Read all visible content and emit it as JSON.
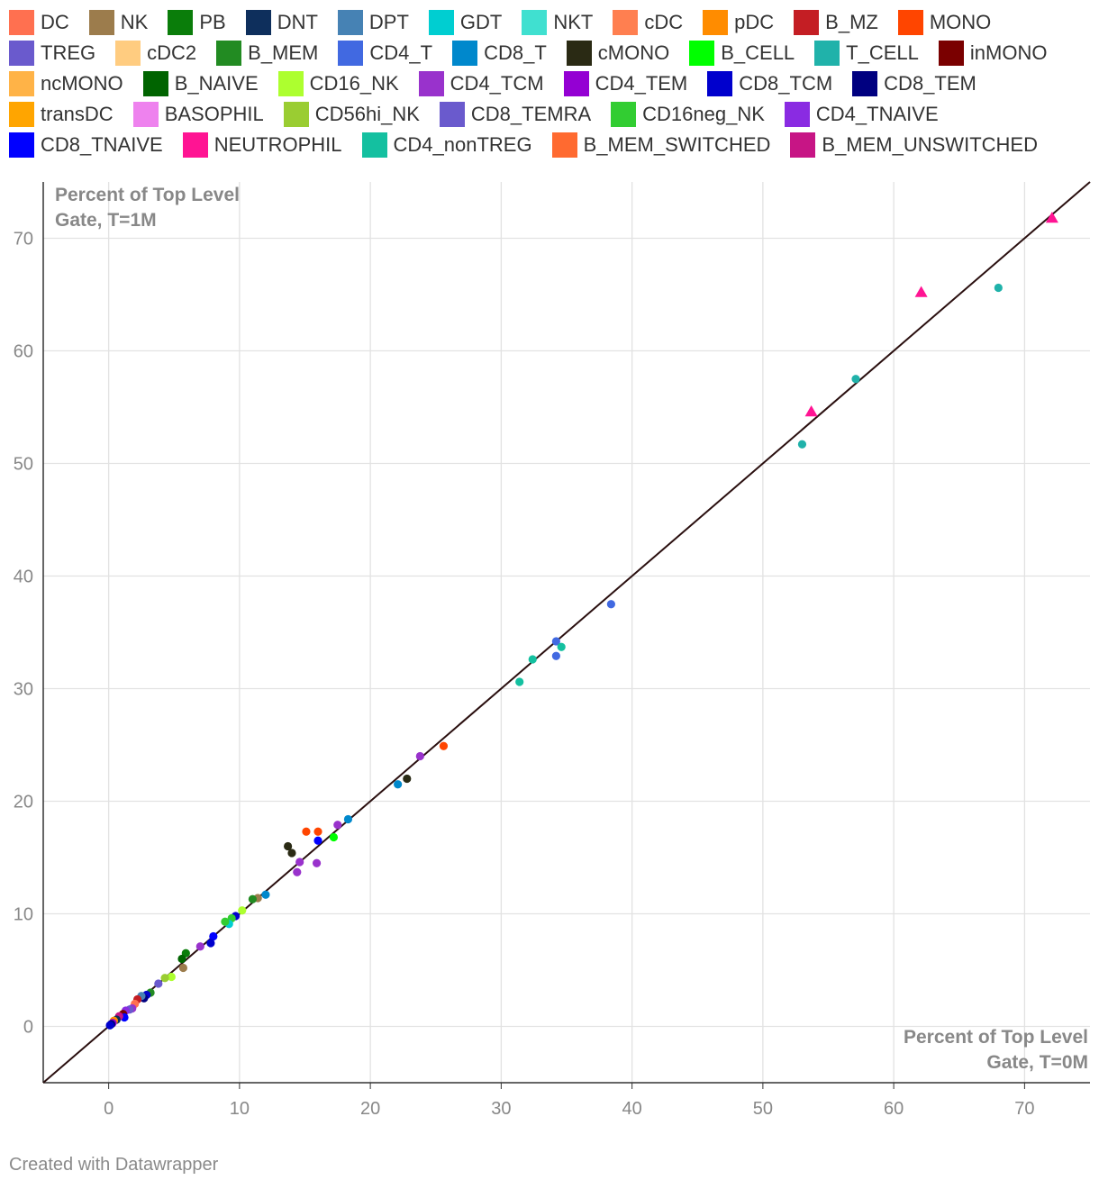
{
  "legend": [
    {
      "label": "DC",
      "color": "#ff7050"
    },
    {
      "label": "NK",
      "color": "#9c7c4c"
    },
    {
      "label": "PB",
      "color": "#0a7d0a"
    },
    {
      "label": "DNT",
      "color": "#0e2f5c"
    },
    {
      "label": "DPT",
      "color": "#4682b4"
    },
    {
      "label": "GDT",
      "color": "#00ced1"
    },
    {
      "label": "NKT",
      "color": "#40e0d0"
    },
    {
      "label": "cDC",
      "color": "#ff7f50"
    },
    {
      "label": "pDC",
      "color": "#ff8c00"
    },
    {
      "label": "B_MZ",
      "color": "#c41e24"
    },
    {
      "label": "MONO",
      "color": "#ff4500"
    },
    {
      "label": "TREG",
      "color": "#6a5acd"
    },
    {
      "label": "cDC2",
      "color": "#ffcc80"
    },
    {
      "label": "B_MEM",
      "color": "#228b22"
    },
    {
      "label": "CD4_T",
      "color": "#4169e1"
    },
    {
      "label": "CD8_T",
      "color": "#0088cc"
    },
    {
      "label": "cMONO",
      "color": "#2a2a14"
    },
    {
      "label": "B_CELL",
      "color": "#00ff00"
    },
    {
      "label": "T_CELL",
      "color": "#20b2aa"
    },
    {
      "label": "inMONO",
      "color": "#7a0000"
    },
    {
      "label": "ncMONO",
      "color": "#ffb347"
    },
    {
      "label": "B_NAIVE",
      "color": "#006400"
    },
    {
      "label": "CD16_NK",
      "color": "#adff2f"
    },
    {
      "label": "CD4_TCM",
      "color": "#9932cc"
    },
    {
      "label": "CD4_TEM",
      "color": "#9400d3"
    },
    {
      "label": "CD8_TCM",
      "color": "#0000cd"
    },
    {
      "label": "CD8_TEM",
      "color": "#000080"
    },
    {
      "label": "transDC",
      "color": "#ffa500"
    },
    {
      "label": "BASOPHIL",
      "color": "#ee82ee"
    },
    {
      "label": "CD56hi_NK",
      "color": "#9acd32"
    },
    {
      "label": "CD8_TEMRA",
      "color": "#6a5acd"
    },
    {
      "label": "CD16neg_NK",
      "color": "#32cd32"
    },
    {
      "label": "CD4_TNAIVE",
      "color": "#8a2be2"
    },
    {
      "label": "CD8_TNAIVE",
      "color": "#0000ff"
    },
    {
      "label": "NEUTROPHIL",
      "color": "#ff1493"
    },
    {
      "label": "CD4_nonTREG",
      "color": "#14c0a0"
    },
    {
      "label": "B_MEM_SWITCHED",
      "color": "#ff6a30"
    },
    {
      "label": "B_MEM_UNSWITCHED",
      "color": "#c71585"
    }
  ],
  "chart_data": {
    "type": "scatter",
    "title": "",
    "xlabel": "Percent of Top Level Gate, T=0M",
    "ylabel": "Percent of Top Level Gate, T=1M",
    "xlabel_lines": [
      "Percent of Top Level",
      "Gate, T=0M"
    ],
    "ylabel_lines": [
      "Percent of Top Level",
      "Gate, T=1M"
    ],
    "xlim": [
      -5,
      75
    ],
    "ylim": [
      -5,
      75
    ],
    "x_ticks": [
      0,
      10,
      20,
      30,
      40,
      50,
      60,
      70
    ],
    "y_ticks": [
      0,
      10,
      20,
      30,
      40,
      50,
      60,
      70
    ],
    "reference_line": {
      "from": [
        -5,
        -5
      ],
      "to": [
        75,
        75
      ],
      "color": "#2a0f0f"
    },
    "points": [
      {
        "x": 72.1,
        "y": 71.8,
        "color": "#ff1493",
        "shape": "triangle"
      },
      {
        "x": 62.1,
        "y": 65.2,
        "color": "#ff1493",
        "shape": "triangle"
      },
      {
        "x": 53.7,
        "y": 54.6,
        "color": "#ff1493",
        "shape": "triangle"
      },
      {
        "x": 68.0,
        "y": 65.6,
        "color": "#20b2aa",
        "shape": "circle"
      },
      {
        "x": 57.1,
        "y": 57.5,
        "color": "#20b2aa",
        "shape": "circle"
      },
      {
        "x": 53.0,
        "y": 51.7,
        "color": "#20b2aa",
        "shape": "circle"
      },
      {
        "x": 38.4,
        "y": 37.5,
        "color": "#4169e1",
        "shape": "circle"
      },
      {
        "x": 34.2,
        "y": 34.2,
        "color": "#4169e1",
        "shape": "circle"
      },
      {
        "x": 34.2,
        "y": 32.9,
        "color": "#4169e1",
        "shape": "circle"
      },
      {
        "x": 34.6,
        "y": 33.7,
        "color": "#14c0a0",
        "shape": "circle"
      },
      {
        "x": 32.4,
        "y": 32.6,
        "color": "#14c0a0",
        "shape": "circle"
      },
      {
        "x": 31.4,
        "y": 30.6,
        "color": "#14c0a0",
        "shape": "circle"
      },
      {
        "x": 25.6,
        "y": 24.9,
        "color": "#ff4500",
        "shape": "circle"
      },
      {
        "x": 23.8,
        "y": 24.0,
        "color": "#9932cc",
        "shape": "circle"
      },
      {
        "x": 22.8,
        "y": 22.0,
        "color": "#2a2a14",
        "shape": "circle"
      },
      {
        "x": 22.1,
        "y": 21.5,
        "color": "#0088cc",
        "shape": "circle"
      },
      {
        "x": 18.3,
        "y": 18.4,
        "color": "#0088cc",
        "shape": "circle"
      },
      {
        "x": 17.5,
        "y": 17.9,
        "color": "#9932cc",
        "shape": "circle"
      },
      {
        "x": 17.2,
        "y": 16.8,
        "color": "#00ff00",
        "shape": "circle"
      },
      {
        "x": 15.1,
        "y": 17.3,
        "color": "#ff4500",
        "shape": "circle"
      },
      {
        "x": 16.0,
        "y": 17.3,
        "color": "#ff4500",
        "shape": "circle"
      },
      {
        "x": 16.0,
        "y": 16.5,
        "color": "#0000ff",
        "shape": "circle"
      },
      {
        "x": 13.7,
        "y": 16.0,
        "color": "#2a2a14",
        "shape": "circle"
      },
      {
        "x": 14.0,
        "y": 15.4,
        "color": "#2a2a14",
        "shape": "circle"
      },
      {
        "x": 14.6,
        "y": 14.6,
        "color": "#9932cc",
        "shape": "circle"
      },
      {
        "x": 15.9,
        "y": 14.5,
        "color": "#9932cc",
        "shape": "circle"
      },
      {
        "x": 14.4,
        "y": 13.7,
        "color": "#9932cc",
        "shape": "circle"
      },
      {
        "x": 12.0,
        "y": 11.7,
        "color": "#0088cc",
        "shape": "circle"
      },
      {
        "x": 11.4,
        "y": 11.4,
        "color": "#9c7c4c",
        "shape": "circle"
      },
      {
        "x": 11.0,
        "y": 11.3,
        "color": "#228b22",
        "shape": "circle"
      },
      {
        "x": 10.2,
        "y": 10.3,
        "color": "#adff2f",
        "shape": "circle"
      },
      {
        "x": 9.7,
        "y": 9.8,
        "color": "#0000cd",
        "shape": "circle"
      },
      {
        "x": 9.4,
        "y": 9.6,
        "color": "#32cd32",
        "shape": "circle"
      },
      {
        "x": 9.2,
        "y": 9.1,
        "color": "#00ced1",
        "shape": "circle"
      },
      {
        "x": 8.9,
        "y": 9.3,
        "color": "#32cd32",
        "shape": "circle"
      },
      {
        "x": 8.0,
        "y": 8.0,
        "color": "#0000ff",
        "shape": "circle"
      },
      {
        "x": 7.8,
        "y": 7.4,
        "color": "#0000cd",
        "shape": "circle"
      },
      {
        "x": 7.0,
        "y": 7.1,
        "color": "#9932cc",
        "shape": "circle"
      },
      {
        "x": 5.9,
        "y": 6.5,
        "color": "#0a7d0a",
        "shape": "circle"
      },
      {
        "x": 5.6,
        "y": 6.0,
        "color": "#006400",
        "shape": "circle"
      },
      {
        "x": 5.7,
        "y": 5.2,
        "color": "#9c7c4c",
        "shape": "circle"
      },
      {
        "x": 4.8,
        "y": 4.4,
        "color": "#adff2f",
        "shape": "circle"
      },
      {
        "x": 4.3,
        "y": 4.3,
        "color": "#9acd32",
        "shape": "circle"
      },
      {
        "x": 3.8,
        "y": 3.8,
        "color": "#6a5acd",
        "shape": "circle"
      },
      {
        "x": 3.2,
        "y": 3.0,
        "color": "#228b22",
        "shape": "circle"
      },
      {
        "x": 2.9,
        "y": 2.8,
        "color": "#0000cd",
        "shape": "circle"
      },
      {
        "x": 2.7,
        "y": 2.5,
        "color": "#000080",
        "shape": "circle"
      },
      {
        "x": 2.5,
        "y": 2.7,
        "color": "#4682b4",
        "shape": "circle"
      },
      {
        "x": 2.2,
        "y": 2.4,
        "color": "#c41e24",
        "shape": "circle"
      },
      {
        "x": 2.0,
        "y": 2.0,
        "color": "#ff7050",
        "shape": "circle"
      },
      {
        "x": 1.8,
        "y": 1.6,
        "color": "#9932cc",
        "shape": "circle"
      },
      {
        "x": 1.6,
        "y": 1.5,
        "color": "#6a5acd",
        "shape": "circle"
      },
      {
        "x": 1.3,
        "y": 1.4,
        "color": "#8a2be2",
        "shape": "circle"
      },
      {
        "x": 1.1,
        "y": 1.1,
        "color": "#7a0000",
        "shape": "circle"
      },
      {
        "x": 1.2,
        "y": 0.8,
        "color": "#0000ff",
        "shape": "circle"
      },
      {
        "x": 0.8,
        "y": 0.9,
        "color": "#c71585",
        "shape": "circle"
      },
      {
        "x": 0.6,
        "y": 0.6,
        "color": "#0e2f5c",
        "shape": "circle"
      },
      {
        "x": 0.4,
        "y": 0.5,
        "color": "#ff8c00",
        "shape": "circle"
      },
      {
        "x": 0.3,
        "y": 0.3,
        "color": "#9400d3",
        "shape": "circle"
      },
      {
        "x": 0.2,
        "y": 0.2,
        "color": "#000080",
        "shape": "circle"
      },
      {
        "x": 0.1,
        "y": 0.1,
        "color": "#0000cd",
        "shape": "circle"
      }
    ]
  },
  "footer": {
    "credit": "Created with Datawrapper"
  }
}
